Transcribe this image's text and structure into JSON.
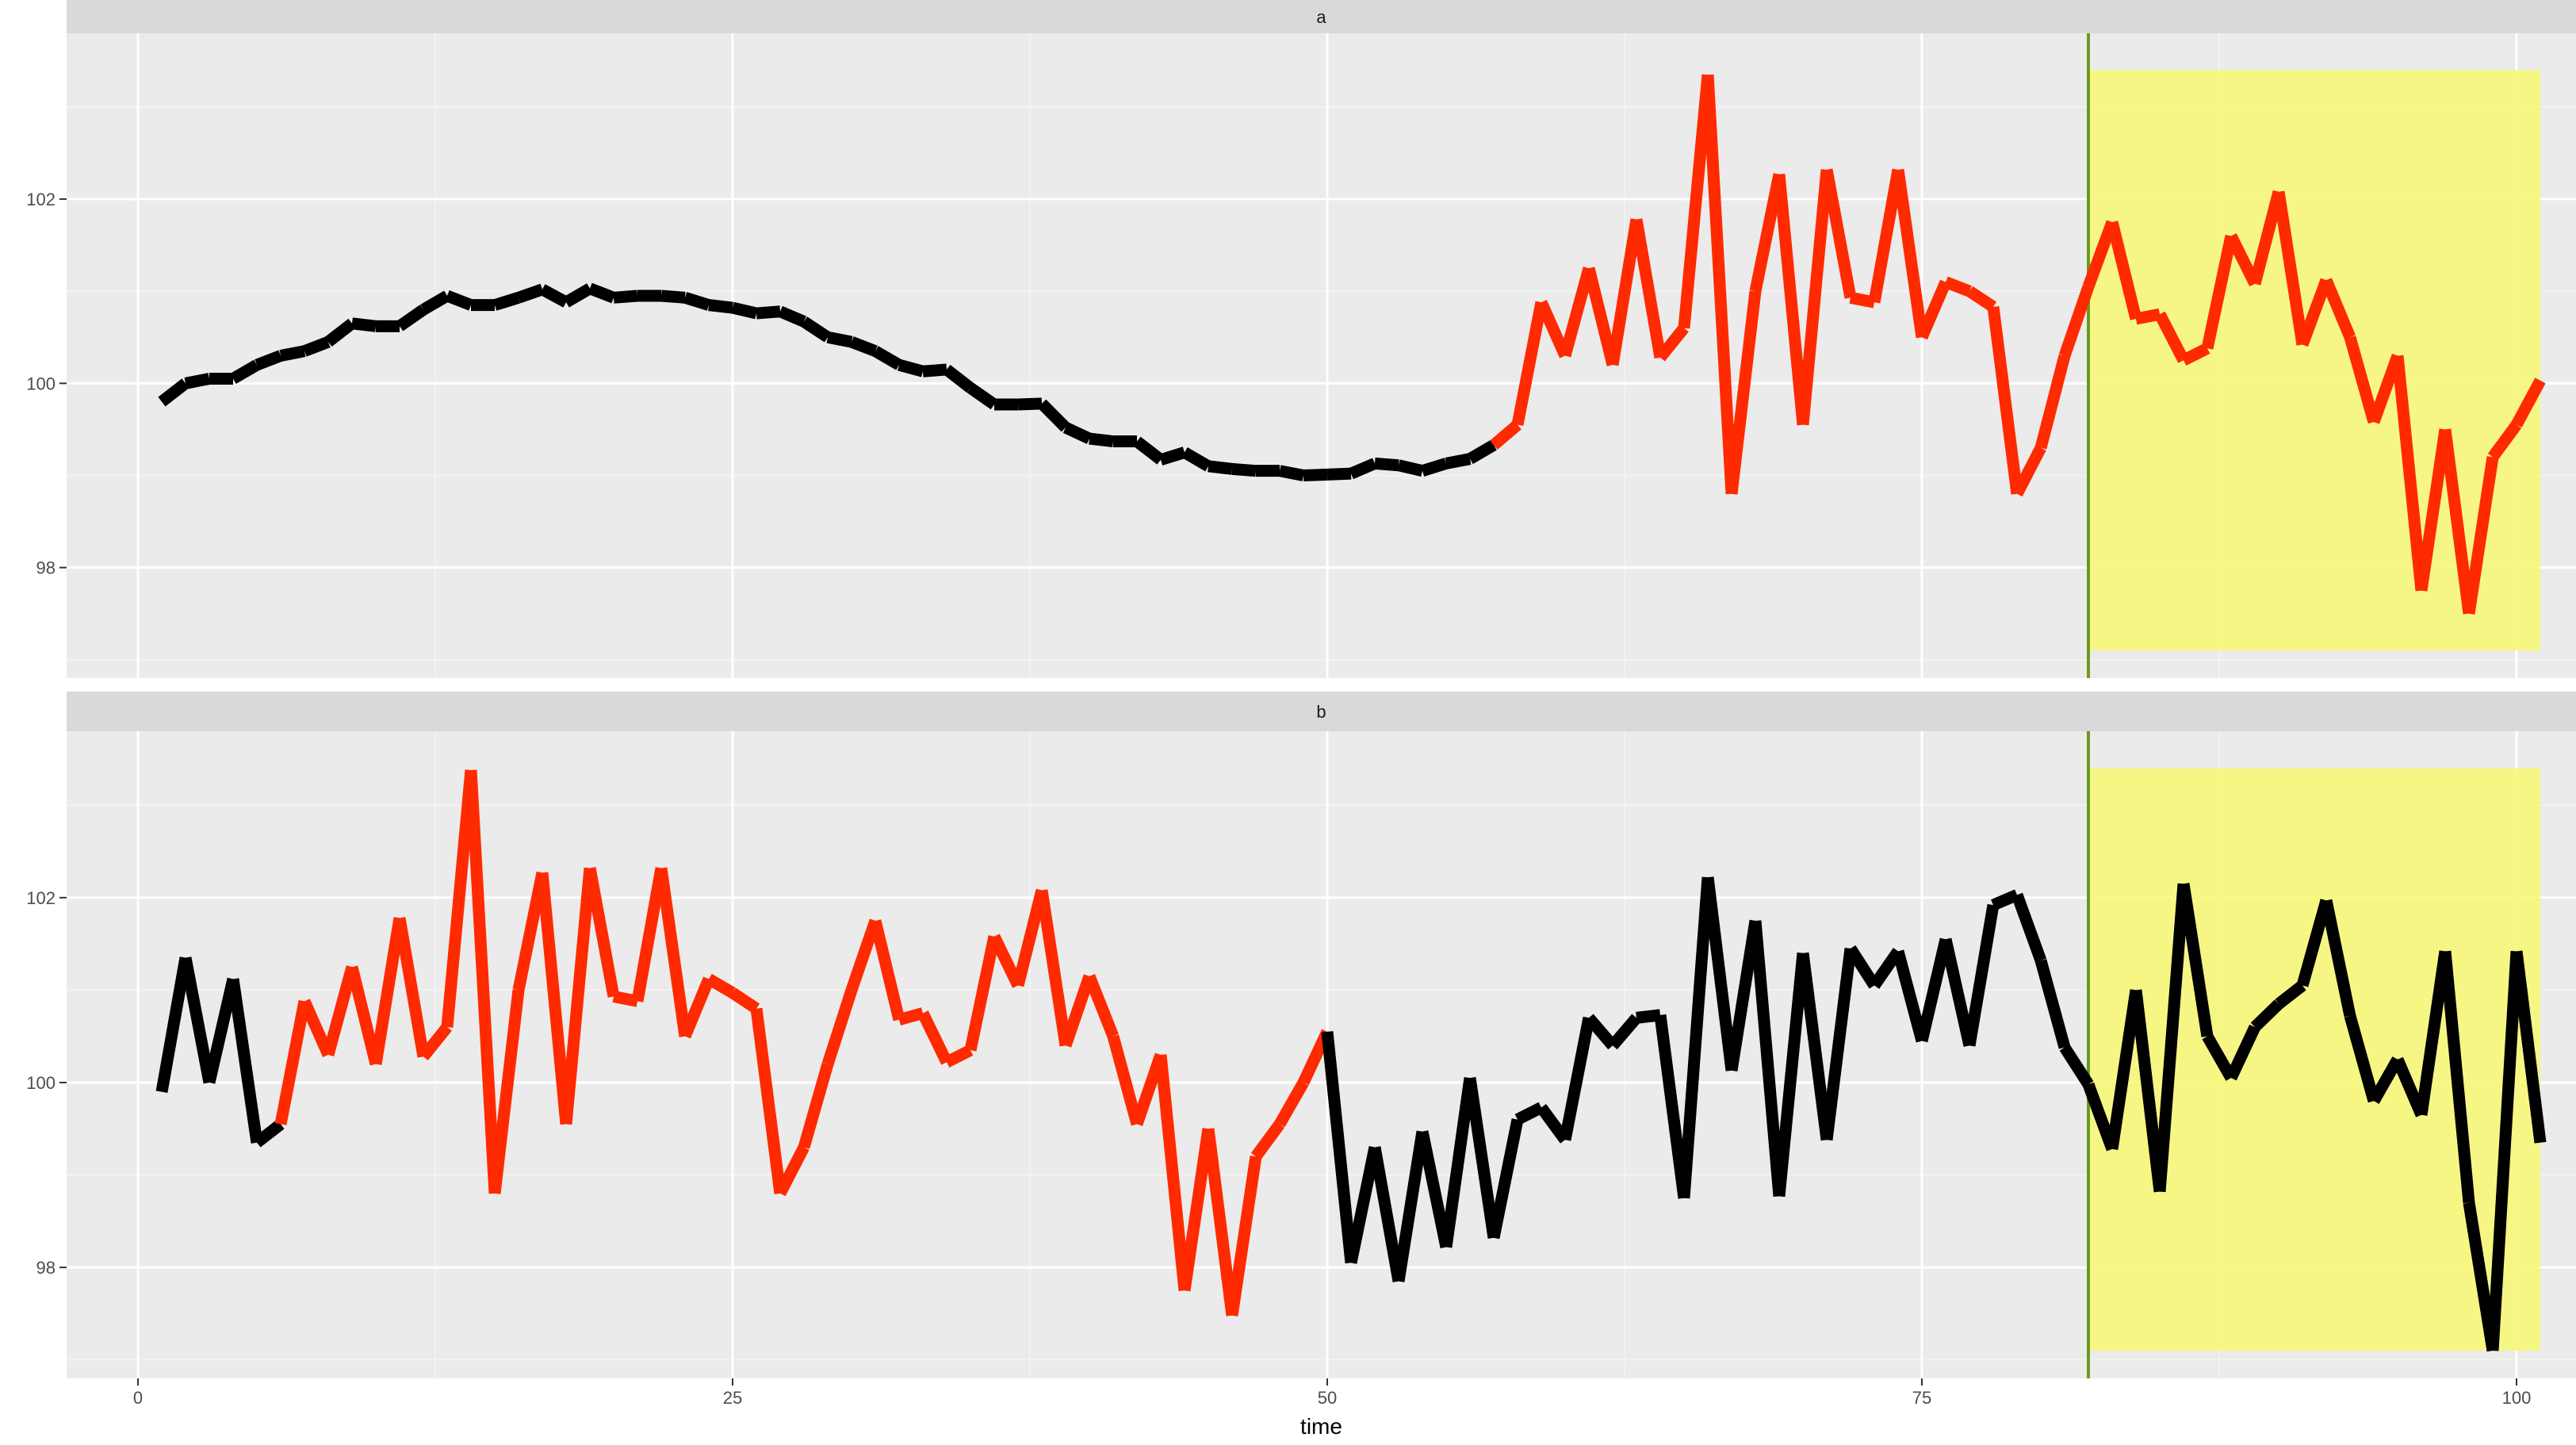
{
  "chart_data": {
    "type": "line",
    "xlabel": "time",
    "ylabel": "",
    "xlim": [
      -3,
      102.5
    ],
    "ylim": [
      96.8,
      103.8
    ],
    "x_ticks": [
      0,
      25,
      50,
      75,
      100
    ],
    "y_ticks": [
      98,
      100,
      102
    ],
    "grid": true,
    "vertical_line": {
      "x": 82,
      "color": "#6b9a1f"
    },
    "highlight_region": {
      "x": [
        82,
        101
      ],
      "y": [
        97.1,
        103.4
      ],
      "color": "#f7f77a"
    },
    "colors": {
      "normal": "#000000",
      "anomaly": "#ff2a00",
      "strip": "#d9d9d9",
      "panel": "#ebebeb"
    },
    "panels": [
      {
        "strip_label": "a",
        "series": [
          {
            "name": "",
            "x": [
              1,
              2,
              3,
              4,
              5,
              6,
              7,
              8,
              9,
              10,
              11,
              12,
              13,
              14,
              15,
              16,
              17,
              18,
              19,
              20,
              21,
              22,
              23,
              24,
              25,
              26,
              27,
              28,
              29,
              30,
              31,
              32,
              33,
              34,
              35,
              36,
              37,
              38,
              39,
              40,
              41,
              42,
              43,
              44,
              45,
              46,
              47,
              48,
              49,
              50,
              51,
              52,
              53,
              54,
              55,
              56,
              57,
              58,
              59,
              60,
              61,
              62,
              63,
              64,
              65,
              66,
              67,
              68,
              69,
              70,
              71,
              72,
              73,
              74,
              75,
              76,
              77,
              78,
              79,
              80,
              81,
              82,
              83,
              84,
              85,
              86,
              87,
              88,
              89,
              90,
              91,
              92,
              93,
              94,
              95,
              96,
              97,
              98,
              99,
              100,
              101
            ],
            "y": [
              99.8,
              100.0,
              100.05,
              100.05,
              100.2,
              100.3,
              100.35,
              100.45,
              100.65,
              100.62,
              100.62,
              100.8,
              100.95,
              100.85,
              100.85,
              100.93,
              101.02,
              100.88,
              101.03,
              100.93,
              100.95,
              100.95,
              100.93,
              100.85,
              100.82,
              100.76,
              100.78,
              100.67,
              100.5,
              100.45,
              100.35,
              100.2,
              100.13,
              100.15,
              99.95,
              99.77,
              99.77,
              99.78,
              99.52,
              99.4,
              99.37,
              99.37,
              99.17,
              99.25,
              99.1,
              99.07,
              99.05,
              99.05,
              99.0,
              99.01,
              99.02,
              99.13,
              99.11,
              99.05,
              99.13,
              99.18,
              99.33,
              99.55,
              100.88,
              100.3,
              101.25,
              100.2,
              101.78,
              100.28,
              100.6,
              103.35,
              98.8,
              101.0,
              102.27,
              99.55,
              102.32,
              100.93,
              100.88,
              102.32,
              100.5,
              101.1,
              101.0,
              100.83,
              98.8,
              99.3,
              100.3,
              101.05,
              101.75,
              100.7,
              100.75,
              100.25,
              100.38,
              101.6,
              101.08,
              102.08,
              100.42,
              101.12,
              100.5,
              99.58,
              100.3,
              97.75,
              99.5,
              97.5,
              99.2,
              99.55,
              100.03
            ],
            "anomaly_x_ranges": [
              [
                57,
                101
              ]
            ]
          }
        ]
      },
      {
        "strip_label": "b",
        "series": [
          {
            "name": "",
            "x": [
              1,
              2,
              3,
              4,
              5,
              6,
              7,
              8,
              9,
              10,
              11,
              12,
              13,
              14,
              15,
              16,
              17,
              18,
              19,
              20,
              21,
              22,
              23,
              24,
              25,
              26,
              27,
              28,
              29,
              30,
              31,
              32,
              33,
              34,
              35,
              36,
              37,
              38,
              39,
              40,
              41,
              42,
              43,
              44,
              45,
              46,
              47,
              48,
              49,
              50,
              51,
              52,
              53,
              54,
              55,
              56,
              57,
              58,
              59,
              60,
              61,
              62,
              63,
              64,
              65,
              66,
              67,
              68,
              69,
              70,
              71,
              72,
              73,
              74,
              75,
              76,
              77,
              78,
              79,
              80,
              81,
              82,
              83,
              84,
              85,
              86,
              87,
              88,
              89,
              90,
              91,
              92,
              93,
              94,
              95,
              96,
              97,
              98,
              99,
              100,
              101
            ],
            "y": [
              99.9,
              101.35,
              100.0,
              101.12,
              99.35,
              99.55,
              100.88,
              100.3,
              101.25,
              100.2,
              101.78,
              100.28,
              100.6,
              103.38,
              98.8,
              101.0,
              102.27,
              99.55,
              102.32,
              100.93,
              100.88,
              102.32,
              100.5,
              101.12,
              100.97,
              100.8,
              98.8,
              99.3,
              100.2,
              101.0,
              101.75,
              100.68,
              100.75,
              100.22,
              100.35,
              101.58,
              101.05,
              102.08,
              100.4,
              101.15,
              100.5,
              99.55,
              100.3,
              97.75,
              99.5,
              97.48,
              99.2,
              99.55,
              100.0,
              100.55,
              98.05,
              99.3,
              97.85,
              99.47,
              98.22,
              100.05,
              98.32,
              99.6,
              99.73,
              99.38,
              100.7,
              100.4,
              100.7,
              100.73,
              98.75,
              102.22,
              100.13,
              101.75,
              98.77,
              101.4,
              99.38,
              101.45,
              101.05,
              101.42,
              100.45,
              101.55,
              100.4,
              101.92,
              102.03,
              101.32,
              100.38,
              99.98,
              99.28,
              101.0,
              98.82,
              102.15,
              100.5,
              100.05,
              100.6,
              100.85,
              101.05,
              101.97,
              100.72,
              99.8,
              100.25,
              99.65,
              101.42,
              98.7,
              97.1,
              101.42,
              99.35
            ],
            "anomaly_x_ranges": [
              [
                6,
                50
              ]
            ]
          }
        ]
      }
    ]
  }
}
